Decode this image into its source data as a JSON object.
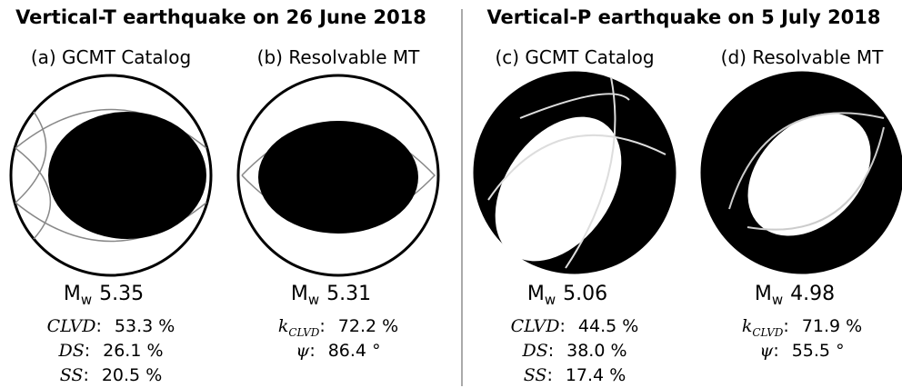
{
  "groups": [
    {
      "title": "Vertical-T earthquake on 26 June 2018",
      "panels": [
        {
          "label": "(a) GCMT Catalog",
          "magnitude": {
            "symbol": "M",
            "sub": "w",
            "value": "5.35"
          },
          "stats": [
            {
              "label": "CLVD",
              "sep": ":",
              "value": "53.3 %"
            },
            {
              "label": "DS",
              "sep": ":",
              "value": "26.1 %"
            },
            {
              "label": "SS",
              "sep": ":",
              "value": "20.5 %"
            }
          ]
        },
        {
          "label": "(b) Resolvable MT",
          "magnitude": {
            "symbol": "M",
            "sub": "w",
            "value": "5.31"
          },
          "stats": [
            {
              "label": "k",
              "sub": "CLVD",
              "sep": ":",
              "value": "72.2 %"
            },
            {
              "label": "ψ",
              "sep": ":",
              "value": "86.4 °"
            }
          ]
        }
      ]
    },
    {
      "title": "Vertical-P earthquake on 5 July 2018",
      "panels": [
        {
          "label": "(c) GCMT Catalog",
          "magnitude": {
            "symbol": "M",
            "sub": "w",
            "value": "5.06"
          },
          "stats": [
            {
              "label": "CLVD",
              "sep": ":",
              "value": "44.5 %"
            },
            {
              "label": "DS",
              "sep": ":",
              "value": "38.0 %"
            },
            {
              "label": "SS",
              "sep": ":",
              "value": "17.4 %"
            }
          ]
        },
        {
          "label": "(d) Resolvable MT",
          "magnitude": {
            "symbol": "M",
            "sub": "w",
            "value": "4.98"
          },
          "stats": [
            {
              "label": "k",
              "sub": "CLVD",
              "sep": ":",
              "value": "71.9 %"
            },
            {
              "label": "ψ",
              "sep": ":",
              "value": "55.5 °"
            }
          ]
        }
      ]
    }
  ]
}
